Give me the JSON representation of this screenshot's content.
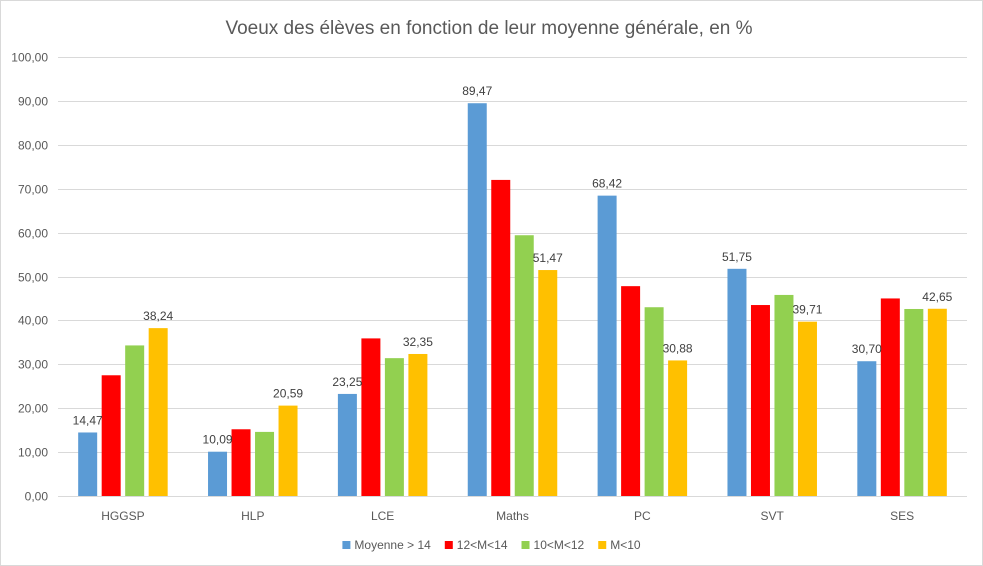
{
  "chart_data": {
    "type": "bar",
    "title": "Voeux des élèves en fonction de leur moyenne générale, en %",
    "xlabel": "",
    "ylabel": "",
    "ylim": [
      0,
      100
    ],
    "y_ticks": [
      "0,00",
      "10,00",
      "20,00",
      "30,00",
      "40,00",
      "50,00",
      "60,00",
      "70,00",
      "80,00",
      "90,00",
      "100,00"
    ],
    "y_tick_values": [
      0,
      10,
      20,
      30,
      40,
      50,
      60,
      70,
      80,
      90,
      100
    ],
    "grid": true,
    "legend_position": "bottom",
    "categories": [
      "HGGSP",
      "HLP",
      "LCE",
      "Maths",
      "PC",
      "SVT",
      "SES"
    ],
    "series": [
      {
        "name": "Moyenne > 14",
        "color": "#5b9bd5",
        "values": [
          14.47,
          10.09,
          23.25,
          89.47,
          68.42,
          51.75,
          30.7
        ],
        "labels": [
          "14,47",
          "10,09",
          "23,25",
          "89,47",
          "68,42",
          "51,75",
          "30,70"
        ]
      },
      {
        "name": "12<M<14",
        "color": "#ff0000",
        "values": [
          27.5,
          15.2,
          35.9,
          72.0,
          47.8,
          43.5,
          45.0
        ],
        "labels": [
          "",
          "",
          "",
          "",
          "",
          "",
          ""
        ]
      },
      {
        "name": "10<M<12",
        "color": "#92d050",
        "values": [
          34.3,
          14.6,
          31.4,
          59.4,
          43.0,
          45.8,
          42.6
        ],
        "labels": [
          "",
          "",
          "",
          "",
          "",
          "",
          ""
        ]
      },
      {
        "name": "M<10",
        "color": "#ffc000",
        "values": [
          38.24,
          20.59,
          32.35,
          51.47,
          30.88,
          39.71,
          42.65
        ],
        "labels": [
          "38,24",
          "20,59",
          "32,35",
          "51,47",
          "30,88",
          "39,71",
          "42,65"
        ]
      }
    ]
  }
}
